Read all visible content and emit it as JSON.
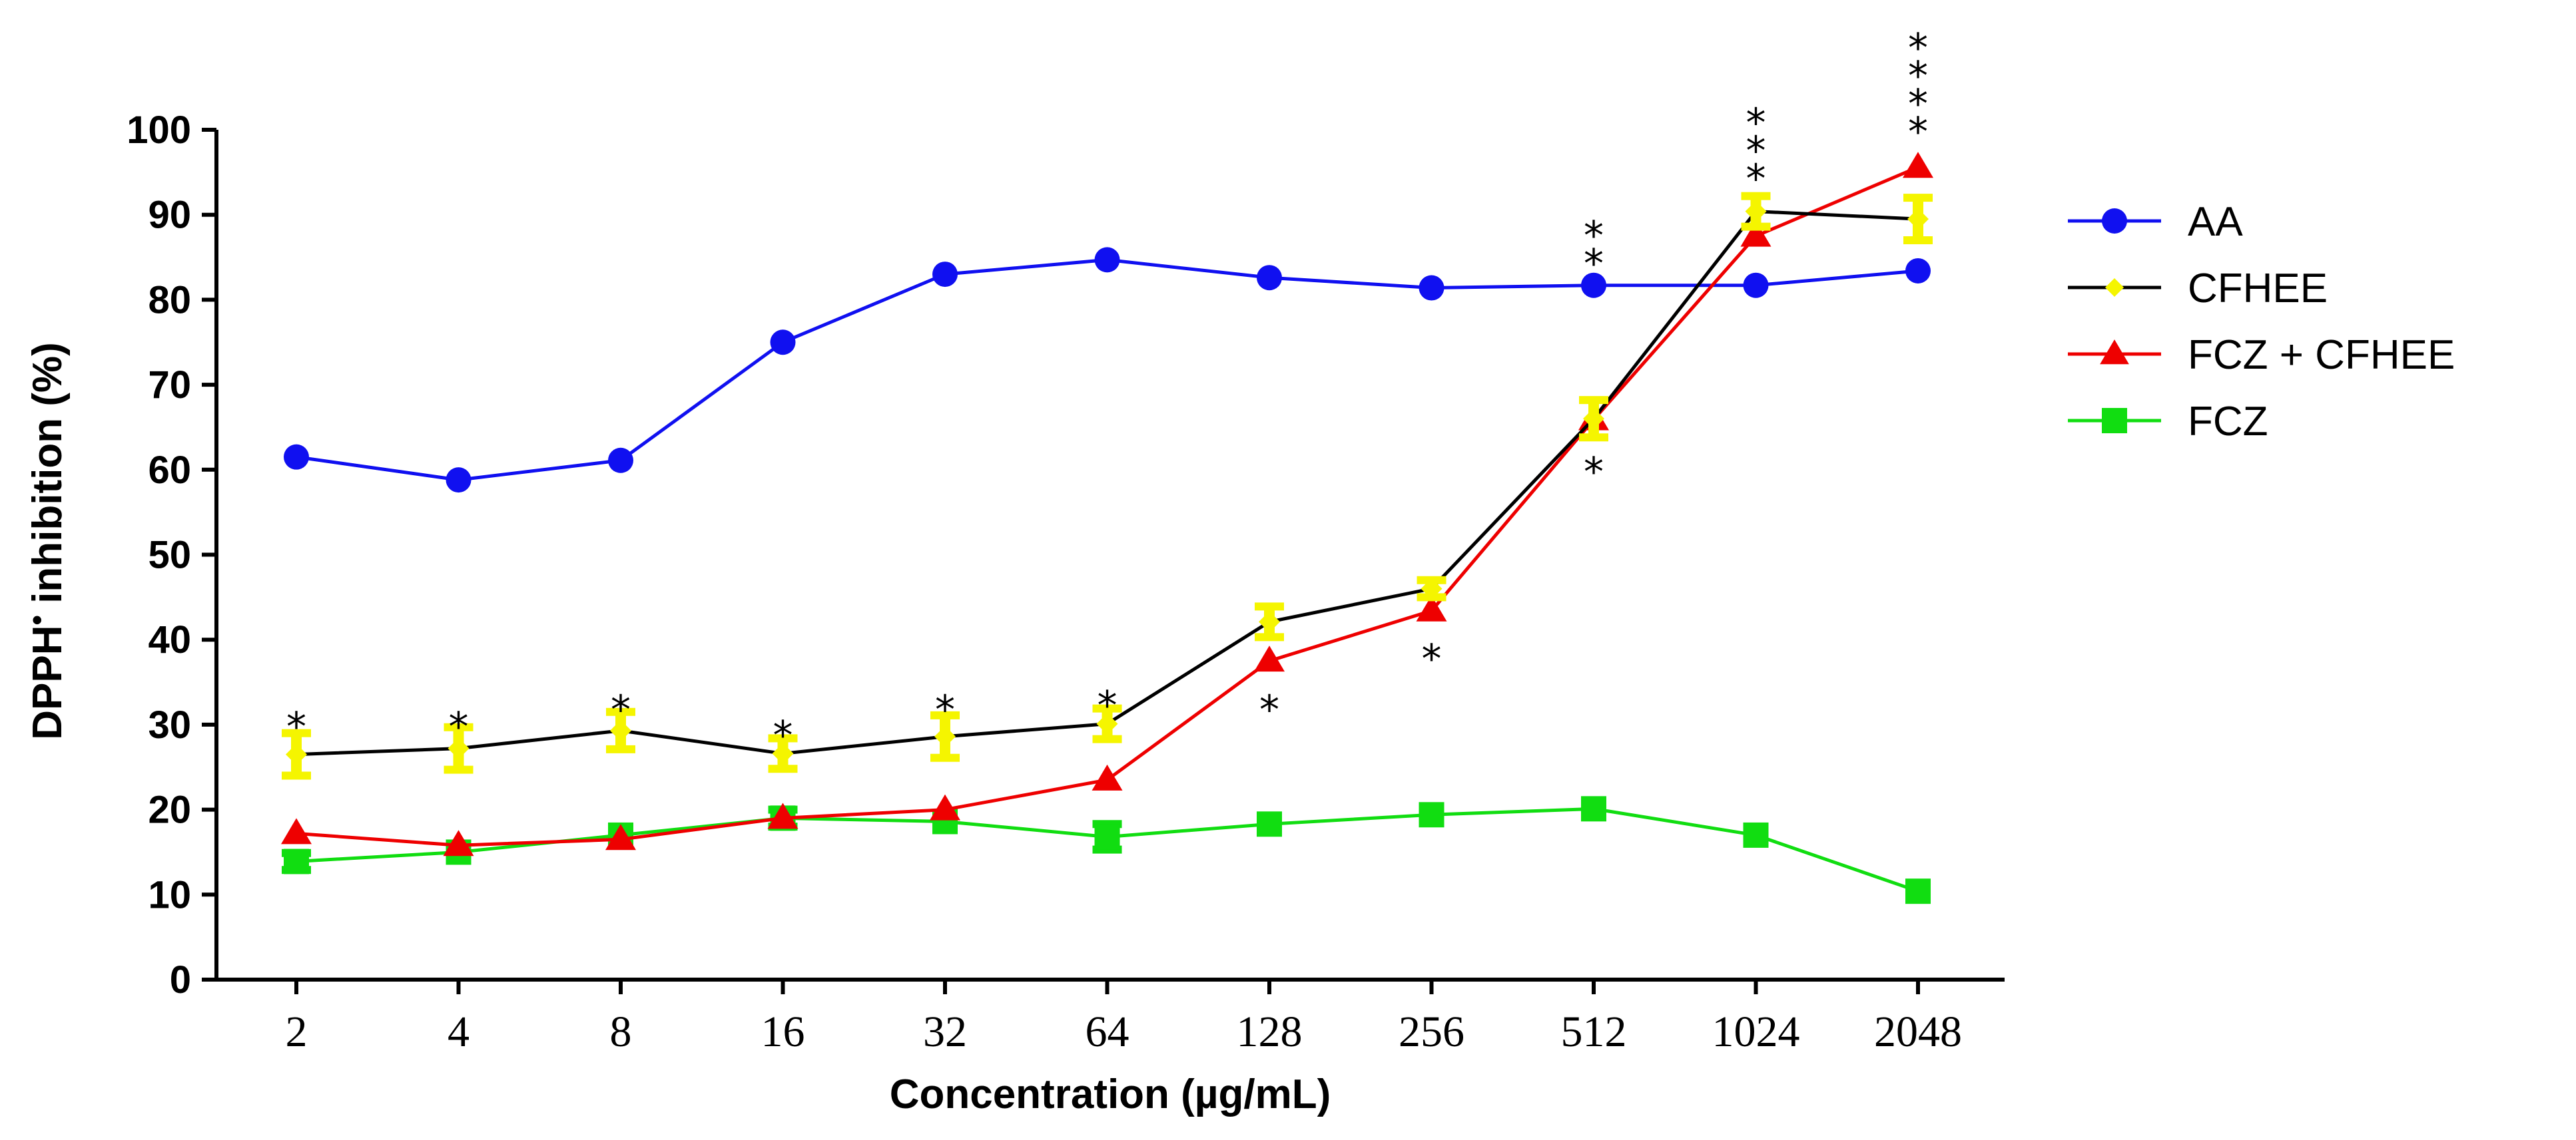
{
  "chart_data": {
    "type": "line",
    "title": "",
    "xlabel": "Concentration (µg/mL)",
    "ylabel": "DPPH",
    "ylabel_superscript": "•",
    "ylabel_suffix": " inhibition (%)",
    "categories": [
      "2",
      "4",
      "8",
      "16",
      "32",
      "64",
      "128",
      "256",
      "512",
      "1024",
      "2048"
    ],
    "ylim": [
      0,
      100
    ],
    "yticks": [
      "0",
      "10",
      "20",
      "30",
      "40",
      "50",
      "60",
      "70",
      "80",
      "90",
      "100"
    ],
    "legend_position": "right",
    "series": [
      {
        "name": "AA",
        "color": "#1010f0",
        "marker": "circle",
        "line_color": "#1010f0",
        "values": [
          61.5,
          58.8,
          61.1,
          75,
          83,
          84.7,
          82.6,
          81.4,
          81.7,
          81.7,
          83.4
        ],
        "errors": []
      },
      {
        "name": "CFHEE",
        "color": "#f5f500",
        "marker": "diamond",
        "line_color": "#000000",
        "values": [
          26.5,
          27.2,
          29.3,
          26.6,
          28.6,
          30.1,
          42.1,
          46,
          66,
          90.4,
          89.5
        ],
        "errors": [
          2.5,
          2.5,
          2.2,
          1.8,
          2.5,
          1.8,
          1.8,
          1.0,
          2.2,
          1.8,
          2.5
        ]
      },
      {
        "name": "FCZ + CFHEE",
        "color": "#ee0000",
        "marker": "triangle",
        "line_color": "#ee0000",
        "values": [
          17.2,
          15.8,
          16.5,
          19,
          20,
          23.5,
          37.5,
          43.4,
          65.9,
          87.5,
          95.6
        ],
        "errors": []
      },
      {
        "name": "FCZ",
        "color": "#11dd11",
        "marker": "square",
        "line_color": "#11dd11",
        "values": [
          13.9,
          15,
          17,
          19,
          18.6,
          16.8,
          18.3,
          19.4,
          20.1,
          17,
          10.4
        ],
        "errors": [
          1.0,
          0,
          0,
          1.0,
          0,
          1.5,
          0,
          0,
          0,
          0,
          0
        ]
      }
    ],
    "annotations": [
      {
        "category": "2",
        "text": "*",
        "position": "above",
        "value": 30.5
      },
      {
        "category": "4",
        "text": "*",
        "position": "above",
        "value": 30.5
      },
      {
        "category": "8",
        "text": "*",
        "position": "above",
        "value": 32.5
      },
      {
        "category": "16",
        "text": "*",
        "position": "above",
        "value": 29.5
      },
      {
        "category": "32",
        "text": "*",
        "position": "above",
        "value": 32.5
      },
      {
        "category": "64",
        "text": "*",
        "position": "above",
        "value": 33.0
      },
      {
        "category": "128",
        "text": "*",
        "position": "below",
        "value": 32.5
      },
      {
        "category": "256",
        "text": "*",
        "position": "below",
        "value": 38.5
      },
      {
        "category": "512",
        "text": "*",
        "position": "below",
        "value": 60.5
      },
      {
        "category": "512",
        "text": "**",
        "position": "above",
        "value": 85.0
      },
      {
        "category": "1024",
        "text": "***",
        "position": "above",
        "value": 95.0
      },
      {
        "category": "2048",
        "text": "****",
        "position": "above",
        "value": 100.5
      }
    ]
  }
}
